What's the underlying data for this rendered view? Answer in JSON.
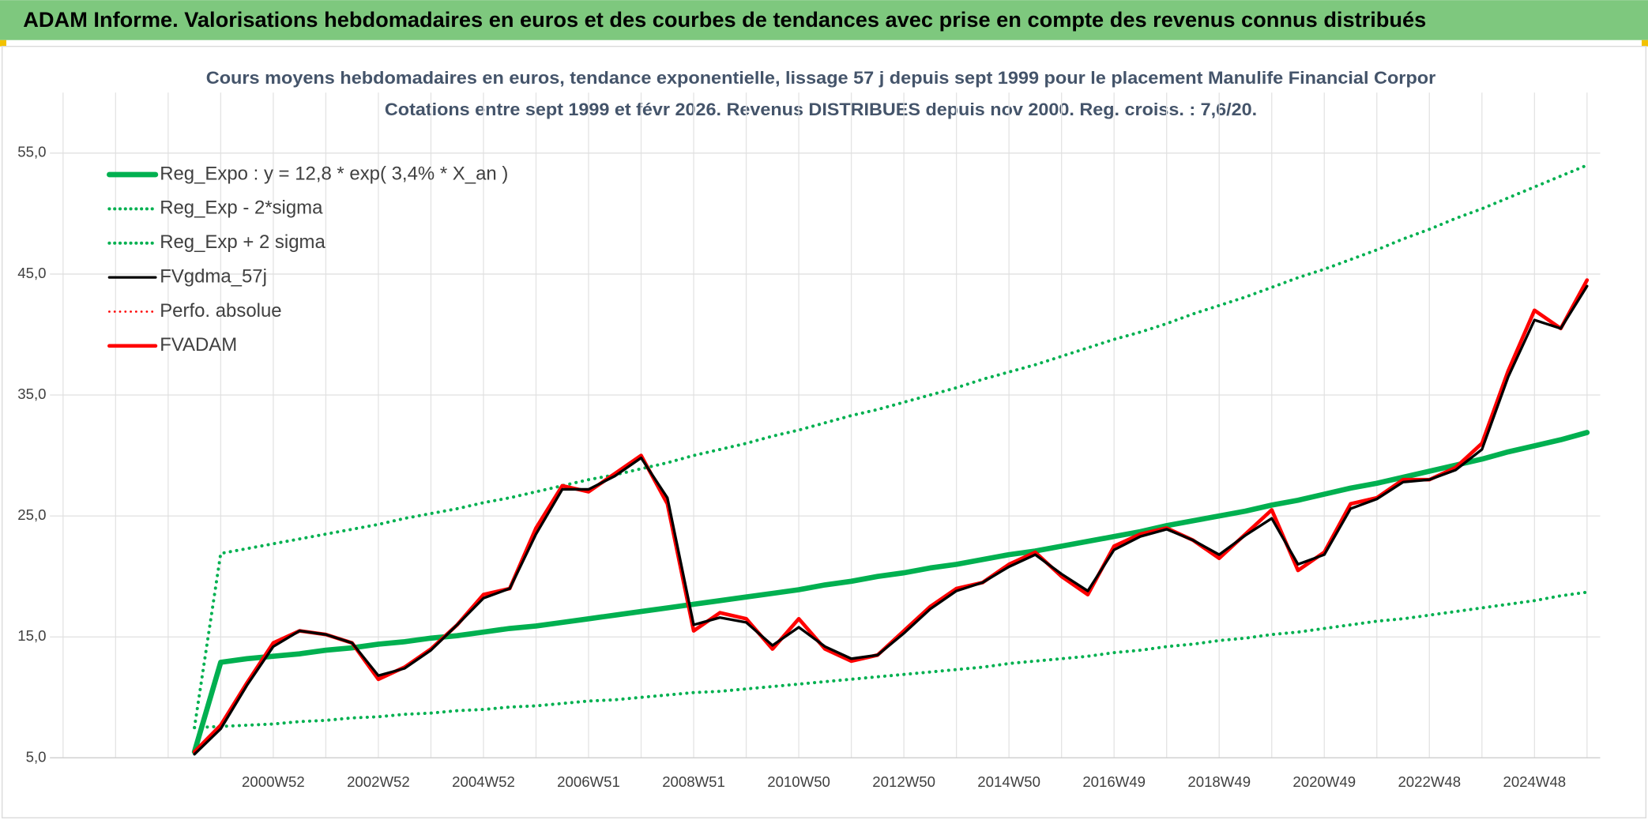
{
  "header": {
    "title": "ADAM Informe. Valorisations hebdomadaires en euros et des courbes de tendances avec prise en compte des revenus connus distribués"
  },
  "chart_data": {
    "type": "line",
    "title": "Cours moyens hebdomadaires en euros, tendance exponentielle, lissage 57 j depuis sept 1999 pour le placement Manulife Financial Corpor",
    "subtitle": "Cotations entre sept 1999 et févr 2026. Revenus DISTRIBUES depuis nov 2000. Reg. croiss. : 7,6/20.",
    "categories": [
      null,
      null,
      null,
      null,
      null,
      null,
      null,
      null,
      "2000W52",
      null,
      null,
      null,
      "2002W52",
      null,
      null,
      null,
      "2004W52",
      null,
      null,
      null,
      "2006W51",
      null,
      null,
      null,
      "2008W51",
      null,
      null,
      null,
      "2010W50",
      null,
      null,
      null,
      "2012W50",
      null,
      null,
      null,
      "2014W50",
      null,
      null,
      null,
      "2016W49",
      null,
      null,
      null,
      "2018W49",
      null,
      null,
      null,
      "2020W49",
      null,
      null,
      null,
      "2022W48",
      null,
      null,
      null,
      "2024W48",
      null,
      null
    ],
    "ylim": [
      5,
      60
    ],
    "yticks": [
      {
        "value": 5,
        "label": "5,0"
      },
      {
        "value": 15,
        "label": "15,0"
      },
      {
        "value": 25,
        "label": "25,0"
      },
      {
        "value": 35,
        "label": "35,0"
      },
      {
        "value": 45,
        "label": "45,0"
      },
      {
        "value": 55,
        "label": "55,0"
      }
    ],
    "grid": true,
    "legend": "upper left",
    "series": [
      {
        "name": "Reg_Expo : y = 12,8 * exp( 3,4% *  X_an )",
        "color": "#00b050",
        "line_style": "solid",
        "values": [
          null,
          null,
          null,
          null,
          null,
          5.5,
          12.9,
          13.2,
          13.4,
          13.6,
          13.9,
          14.1,
          14.4,
          14.6,
          14.9,
          15.1,
          15.4,
          15.7,
          15.9,
          16.2,
          16.5,
          16.8,
          17.1,
          17.4,
          17.7,
          18.0,
          18.3,
          18.6,
          18.9,
          19.3,
          19.6,
          20.0,
          20.3,
          20.7,
          21.0,
          21.4,
          21.8,
          22.1,
          22.5,
          22.9,
          23.3,
          23.7,
          24.2,
          24.6,
          25.0,
          25.4,
          25.9,
          26.3,
          26.8,
          27.3,
          27.7,
          28.2,
          28.7,
          29.2,
          29.7,
          30.3,
          30.8,
          31.3,
          31.9
        ]
      },
      {
        "name": "Reg_Exp - 2*sigma",
        "color": "#00b050",
        "line_style": "dotted",
        "values": [
          null,
          null,
          null,
          null,
          null,
          7.5,
          7.6,
          7.7,
          7.8,
          8.0,
          8.1,
          8.3,
          8.4,
          8.6,
          8.7,
          8.9,
          9.0,
          9.2,
          9.3,
          9.5,
          9.7,
          9.8,
          10.0,
          10.2,
          10.4,
          10.5,
          10.7,
          10.9,
          11.1,
          11.3,
          11.5,
          11.7,
          11.9,
          12.1,
          12.3,
          12.5,
          12.8,
          13.0,
          13.2,
          13.4,
          13.7,
          13.9,
          14.2,
          14.4,
          14.7,
          14.9,
          15.2,
          15.4,
          15.7,
          16.0,
          16.3,
          16.5,
          16.8,
          17.1,
          17.4,
          17.7,
          18.0,
          18.4,
          18.7
        ]
      },
      {
        "name": "Reg_Exp + 2 sigma",
        "color": "#00b050",
        "line_style": "dotted",
        "values": [
          null,
          null,
          null,
          null,
          null,
          7.5,
          21.9,
          22.3,
          22.7,
          23.1,
          23.5,
          23.9,
          24.3,
          24.8,
          25.2,
          25.6,
          26.1,
          26.5,
          27.0,
          27.5,
          28.0,
          28.4,
          28.9,
          29.4,
          30.0,
          30.5,
          31.0,
          31.6,
          32.1,
          32.7,
          33.3,
          33.8,
          34.4,
          35.0,
          35.6,
          36.3,
          36.9,
          37.5,
          38.2,
          38.9,
          39.6,
          40.2,
          40.9,
          41.7,
          42.4,
          43.1,
          43.9,
          44.7,
          45.4,
          46.2,
          47.0,
          47.9,
          48.7,
          49.6,
          50.4,
          51.3,
          52.2,
          53.1,
          54.0
        ]
      },
      {
        "name": "FVgdma_57j",
        "color": "#000000",
        "line_style": "solid",
        "values": [
          null,
          null,
          null,
          null,
          null,
          5.3,
          7.4,
          11.0,
          14.2,
          15.5,
          15.2,
          14.5,
          11.8,
          12.4,
          13.9,
          16.0,
          18.2,
          19.0,
          23.5,
          27.2,
          27.2,
          28.3,
          29.8,
          26.5,
          16.0,
          16.6,
          16.2,
          14.3,
          15.8,
          14.2,
          13.2,
          13.5,
          15.3,
          17.3,
          18.8,
          19.5,
          20.8,
          21.8,
          20.2,
          18.8,
          22.2,
          23.3,
          23.9,
          23.0,
          21.8,
          23.4,
          24.8,
          21.0,
          21.8,
          25.6,
          26.4,
          27.8,
          28.0,
          28.8,
          30.5,
          36.5,
          41.2,
          40.5,
          44.0
        ]
      },
      {
        "name": "Perfo. absolue",
        "color": "#ff0000",
        "line_style": "dotted",
        "values": [
          null,
          null,
          null,
          null,
          null,
          null,
          null,
          null,
          null,
          null,
          null,
          null,
          null,
          null,
          null,
          null,
          null,
          null,
          null,
          null,
          null,
          null,
          null,
          null,
          null,
          null,
          null,
          null,
          null,
          null,
          null,
          null,
          null,
          null,
          null,
          null,
          null,
          null,
          null,
          null,
          null,
          null,
          null,
          null,
          null,
          null,
          null,
          null,
          null,
          null,
          null,
          null,
          null,
          null,
          null,
          null,
          null,
          null,
          null
        ]
      },
      {
        "name": "FVADAM",
        "color": "#ff0000",
        "line_style": "solid",
        "values": [
          null,
          null,
          null,
          null,
          null,
          5.5,
          7.7,
          11.2,
          14.5,
          15.5,
          15.2,
          14.5,
          11.5,
          12.5,
          14.0,
          16.0,
          18.5,
          19.0,
          24.0,
          27.5,
          27.0,
          28.5,
          30.0,
          26.0,
          15.5,
          17.0,
          16.5,
          14.0,
          16.5,
          14.0,
          13.0,
          13.5,
          15.5,
          17.5,
          19.0,
          19.5,
          21.0,
          22.0,
          20.0,
          18.5,
          22.5,
          23.5,
          24.0,
          23.0,
          21.5,
          23.5,
          25.5,
          20.5,
          22.0,
          26.0,
          26.5,
          28.0,
          28.0,
          29.0,
          31.0,
          37.0,
          42.0,
          40.5,
          44.5
        ]
      }
    ]
  }
}
